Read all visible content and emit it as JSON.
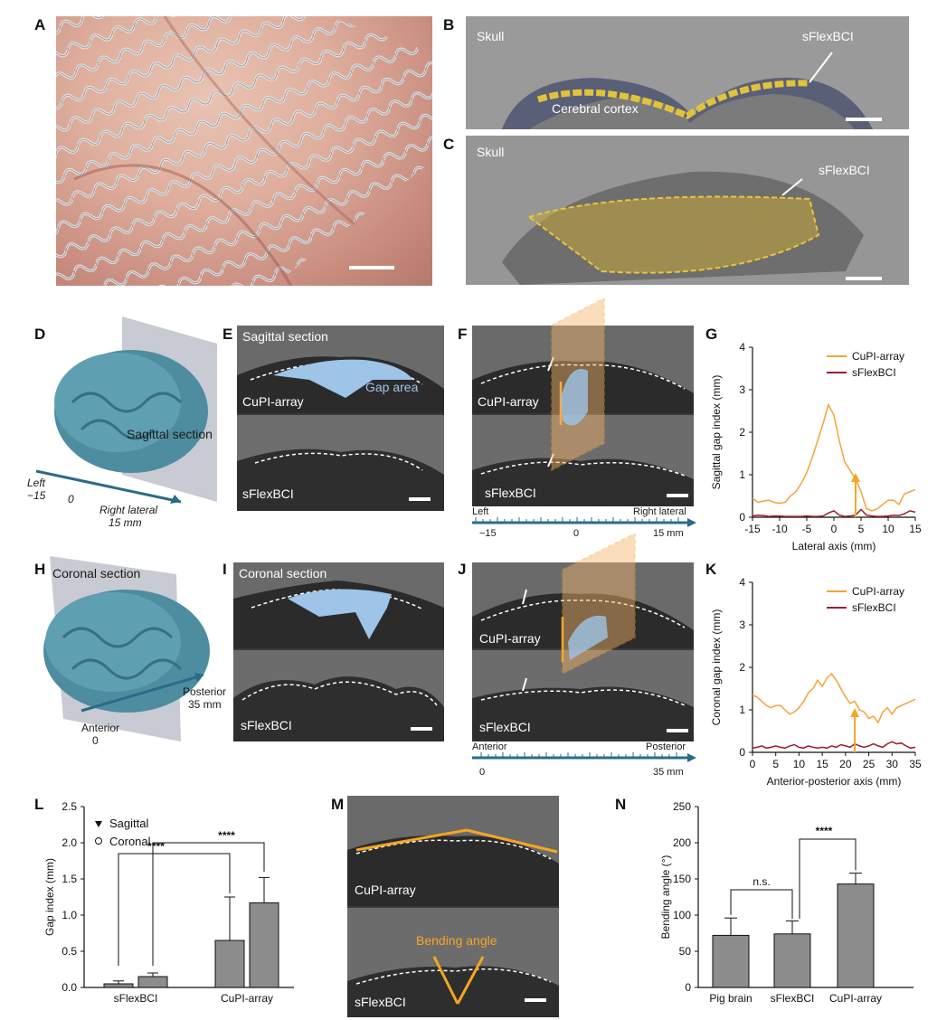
{
  "panels": {
    "A": {
      "letter": "A"
    },
    "B": {
      "letter": "B",
      "labels": {
        "skull": "Skull",
        "device": "sFlexBCI",
        "cortex": "Cerebral cortex"
      }
    },
    "C": {
      "letter": "C",
      "labels": {
        "skull": "Skull",
        "device": "sFlexBCI"
      }
    },
    "D": {
      "letter": "D",
      "section": "Sagittal section",
      "axis_left": "Left",
      "axis_left_val": "−15",
      "axis_zero": "0",
      "axis_right": "Right lateral",
      "axis_right_val": "15 mm"
    },
    "E": {
      "letter": "E",
      "title": "Sagittal section",
      "top_label": "CuPI-array",
      "gap_label": "Gap area",
      "bottom_label": "sFlexBCI"
    },
    "F": {
      "letter": "F",
      "top_label": "CuPI-array",
      "bottom_label": "sFlexBCI",
      "axis_left": "Left",
      "axis_right": "Right lateral",
      "tick_left": "−15",
      "tick_zero": "0",
      "tick_right": "15 mm"
    },
    "H": {
      "letter": "H",
      "section": "Coronal section",
      "axis_left": "Anterior",
      "axis_left_val": "0",
      "axis_right": "Posterior",
      "axis_right_val": "35 mm"
    },
    "I": {
      "letter": "I",
      "title": "Coronal section",
      "bottom_label": "sFlexBCI"
    },
    "J": {
      "letter": "J",
      "top_label": "CuPI-array",
      "bottom_label": "sFlexBCI",
      "axis_left": "Anterior",
      "axis_right": "Posterior",
      "tick_left": "0",
      "tick_right": "35 mm"
    },
    "M": {
      "letter": "M",
      "top_label": "CuPI-array",
      "bend_label": "Bending angle",
      "bottom_label": "sFlexBCI"
    }
  },
  "chart_data": [
    {
      "id": "G",
      "type": "line",
      "xlabel": "Lateral axis (mm)",
      "ylabel": "Sagittal gap index (mm)",
      "xlim": [
        -15,
        15
      ],
      "ylim": [
        0,
        4
      ],
      "xticks": [
        "-15",
        "-10",
        "-5",
        "0",
        "5",
        "10",
        "15"
      ],
      "yticks": [
        "0",
        "1",
        "2",
        "3",
        "4"
      ],
      "legend_position": "top-right",
      "arrow_x": 4,
      "series": [
        {
          "name": "CuPI-array",
          "color": "#f5a23a",
          "x": [
            -15,
            -14,
            -13,
            -12,
            -11,
            -10,
            -9,
            -8,
            -7,
            -6,
            -5,
            -4,
            -3,
            -2,
            -1,
            0,
            1,
            2,
            3,
            4,
            5,
            6,
            7,
            8,
            9,
            10,
            11,
            12,
            13,
            14,
            15
          ],
          "y": [
            0.45,
            0.35,
            0.38,
            0.4,
            0.35,
            0.33,
            0.35,
            0.5,
            0.6,
            0.8,
            1.05,
            1.4,
            1.8,
            2.2,
            2.65,
            2.4,
            1.8,
            1.3,
            1.1,
            0.9,
            0.6,
            0.2,
            0.15,
            0.2,
            0.3,
            0.4,
            0.4,
            0.3,
            0.55,
            0.6,
            0.65
          ]
        },
        {
          "name": "sFlexBCI",
          "color": "#a01c2c",
          "x": [
            -15,
            -14,
            -13,
            -12,
            -11,
            -10,
            -9,
            -8,
            -7,
            -6,
            -5,
            -4,
            -3,
            -2,
            -1,
            0,
            1,
            2,
            3,
            4,
            5,
            6,
            7,
            8,
            9,
            10,
            11,
            12,
            13,
            14,
            15
          ],
          "y": [
            0.03,
            0.05,
            0.04,
            0.02,
            0.03,
            0.03,
            0.02,
            0.02,
            0.02,
            0.02,
            0.03,
            0.02,
            0.02,
            0.03,
            0.1,
            0.15,
            0.05,
            0.02,
            0.03,
            0.05,
            0.18,
            0.05,
            0.03,
            0.02,
            0.02,
            0.03,
            0.05,
            0.04,
            0.08,
            0.15,
            0.12
          ]
        }
      ]
    },
    {
      "id": "K",
      "type": "line",
      "xlabel": "Anterior-posterior axis (mm)",
      "ylabel": "Coronal gap index (mm)",
      "xlim": [
        0,
        35
      ],
      "ylim": [
        0,
        4
      ],
      "xticks": [
        "0",
        "5",
        "10",
        "15",
        "20",
        "25",
        "30",
        "35"
      ],
      "yticks": [
        "0",
        "1",
        "2",
        "3",
        "4"
      ],
      "legend_position": "top-right",
      "arrow_x": 22,
      "series": [
        {
          "name": "CuPI-array",
          "color": "#f5a23a",
          "x": [
            0,
            1,
            2,
            3,
            4,
            5,
            6,
            7,
            8,
            9,
            10,
            11,
            12,
            13,
            14,
            15,
            16,
            17,
            18,
            19,
            20,
            21,
            22,
            23,
            24,
            25,
            26,
            27,
            28,
            29,
            30,
            31,
            32,
            33,
            34,
            35
          ],
          "y": [
            1.35,
            1.3,
            1.2,
            1.1,
            1.05,
            1.1,
            1.1,
            1.0,
            0.9,
            0.95,
            1.05,
            1.2,
            1.4,
            1.5,
            1.7,
            1.55,
            1.75,
            1.85,
            1.7,
            1.5,
            1.3,
            1.15,
            1.2,
            1.0,
            0.95,
            0.8,
            0.85,
            0.7,
            0.95,
            1.05,
            0.9,
            1.05,
            1.1,
            1.15,
            1.2,
            1.25
          ]
        },
        {
          "name": "sFlexBCI",
          "color": "#a01c2c",
          "x": [
            0,
            1,
            2,
            3,
            4,
            5,
            6,
            7,
            8,
            9,
            10,
            11,
            12,
            13,
            14,
            15,
            16,
            17,
            18,
            19,
            20,
            21,
            22,
            23,
            24,
            25,
            26,
            27,
            28,
            29,
            30,
            31,
            32,
            33,
            34,
            35
          ],
          "y": [
            0.1,
            0.12,
            0.15,
            0.1,
            0.12,
            0.15,
            0.12,
            0.1,
            0.15,
            0.18,
            0.12,
            0.1,
            0.15,
            0.12,
            0.1,
            0.12,
            0.1,
            0.15,
            0.12,
            0.18,
            0.15,
            0.12,
            0.2,
            0.15,
            0.12,
            0.15,
            0.2,
            0.15,
            0.12,
            0.2,
            0.25,
            0.2,
            0.22,
            0.15,
            0.1,
            0.12
          ]
        }
      ]
    },
    {
      "id": "L",
      "type": "bar",
      "ylabel": "Gap index (mm)",
      "ylim": [
        0,
        2.5
      ],
      "yticks": [
        "0.0",
        "0.5",
        "1.0",
        "1.5",
        "2.0",
        "2.5"
      ],
      "groups": [
        "sFlexBCI",
        "CuPI-array"
      ],
      "legend": [
        "Sagittal",
        "Coronal"
      ],
      "significance": [
        "****",
        "****"
      ],
      "series": [
        {
          "name": "Sagittal",
          "values": [
            0.05,
            0.65
          ],
          "err": [
            0.04,
            0.6
          ]
        },
        {
          "name": "Coronal",
          "values": [
            0.15,
            1.17
          ],
          "err": [
            0.05,
            0.35
          ]
        }
      ]
    },
    {
      "id": "N",
      "type": "bar",
      "ylabel": "Bending angle (°)",
      "ylim": [
        0,
        250
      ],
      "yticks": [
        "0",
        "50",
        "100",
        "150",
        "200",
        "250"
      ],
      "categories": [
        "Pig brain",
        "sFlexBCI",
        "CuPI-array"
      ],
      "values": [
        72,
        74,
        143
      ],
      "err": [
        24,
        18,
        15
      ],
      "significance": [
        "n.s.",
        "****"
      ]
    }
  ]
}
